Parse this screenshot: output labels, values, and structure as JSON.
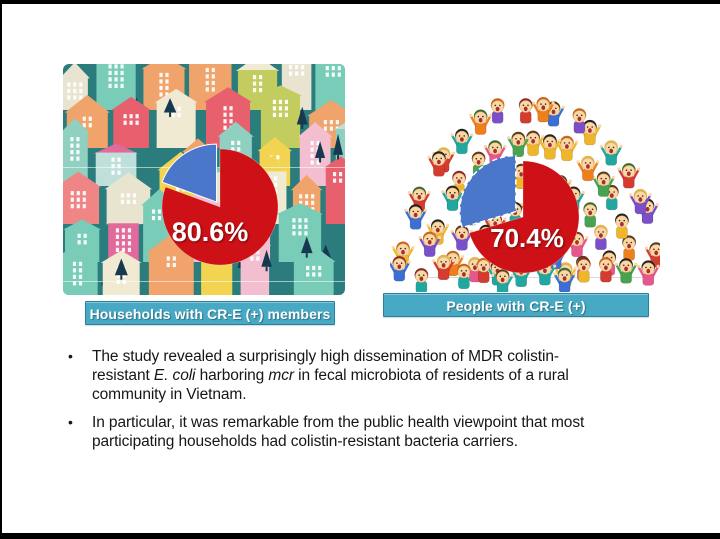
{
  "chart_data": [
    {
      "type": "pie",
      "title": "Households with CR-E (+) members",
      "legend": "none",
      "slices": [
        {
          "value": 80.6,
          "data_label": "80.6%",
          "color": "#cd1116"
        },
        {
          "value": 19.4,
          "data_label": "",
          "color": "#4a77c9"
        }
      ],
      "data_label_color": "#ffffff",
      "background_art": "colorful town of houses"
    },
    {
      "type": "pie",
      "title": "People with CR-E (+)",
      "legend": "none",
      "slices": [
        {
          "value": 70.4,
          "data_label": "70.4%",
          "color": "#cd1116"
        },
        {
          "value": 29.6,
          "data_label": "",
          "color": "#4a77c9"
        }
      ],
      "data_label_color": "#ffffff",
      "background_art": "cartoon crowd of cheering people in a dome shape"
    }
  ],
  "caption_style": {
    "bg": "#47a9c4",
    "border": "#2b7f9e",
    "text": "#ffffff"
  },
  "bullet_marker": "•",
  "bullets": [
    {
      "lines": [
        [
          {
            "t": "The study revealed a surprisingly high dissemination of MDR colistin-"
          }
        ],
        [
          {
            "t": "resistant "
          },
          {
            "t": "E. coli",
            "i": 1
          },
          {
            "t": " harboring "
          },
          {
            "t": "mcr",
            "i": 1
          },
          {
            "t": " in fecal microbiota of residents of a rural"
          }
        ],
        [
          {
            "t": "community in Vietnam."
          }
        ]
      ]
    },
    {
      "lines": [
        [
          {
            "t": "In particular, it was remarkable from the public health viewpoint that most"
          }
        ],
        [
          {
            "t": "participating households had colistin-resistant bacteria carriers."
          }
        ]
      ]
    }
  ],
  "illustrations": {
    "houses": {
      "bg": "#2a7c7d",
      "tree": "#16394f",
      "window": "#ffffff",
      "palette": [
        "#e8606e",
        "#f2d450",
        "#f0ead2",
        "#f0a36b",
        "#f3bfd0",
        "#79cdb8",
        "#c3cc5f",
        "#bfe0da",
        "#e26a9b",
        "#e9e4d0",
        "#8fd0c0",
        "#ef8585"
      ]
    },
    "crowd": {
      "skin": "#fcd7a3",
      "skin_outline": "#d8a86a",
      "mouth": "#a63030",
      "baseline": "#d9d9d9",
      "hair": [
        "#5b3a1e",
        "#232323",
        "#c9651c",
        "#e0b64e",
        "#8a2b2b",
        "#3a6b35"
      ],
      "shirts": [
        "#d63b2f",
        "#f0b62a",
        "#3b6fd4",
        "#48a350",
        "#ef7f1a",
        "#7a4fc9",
        "#e8568e",
        "#20a7a0"
      ]
    }
  }
}
